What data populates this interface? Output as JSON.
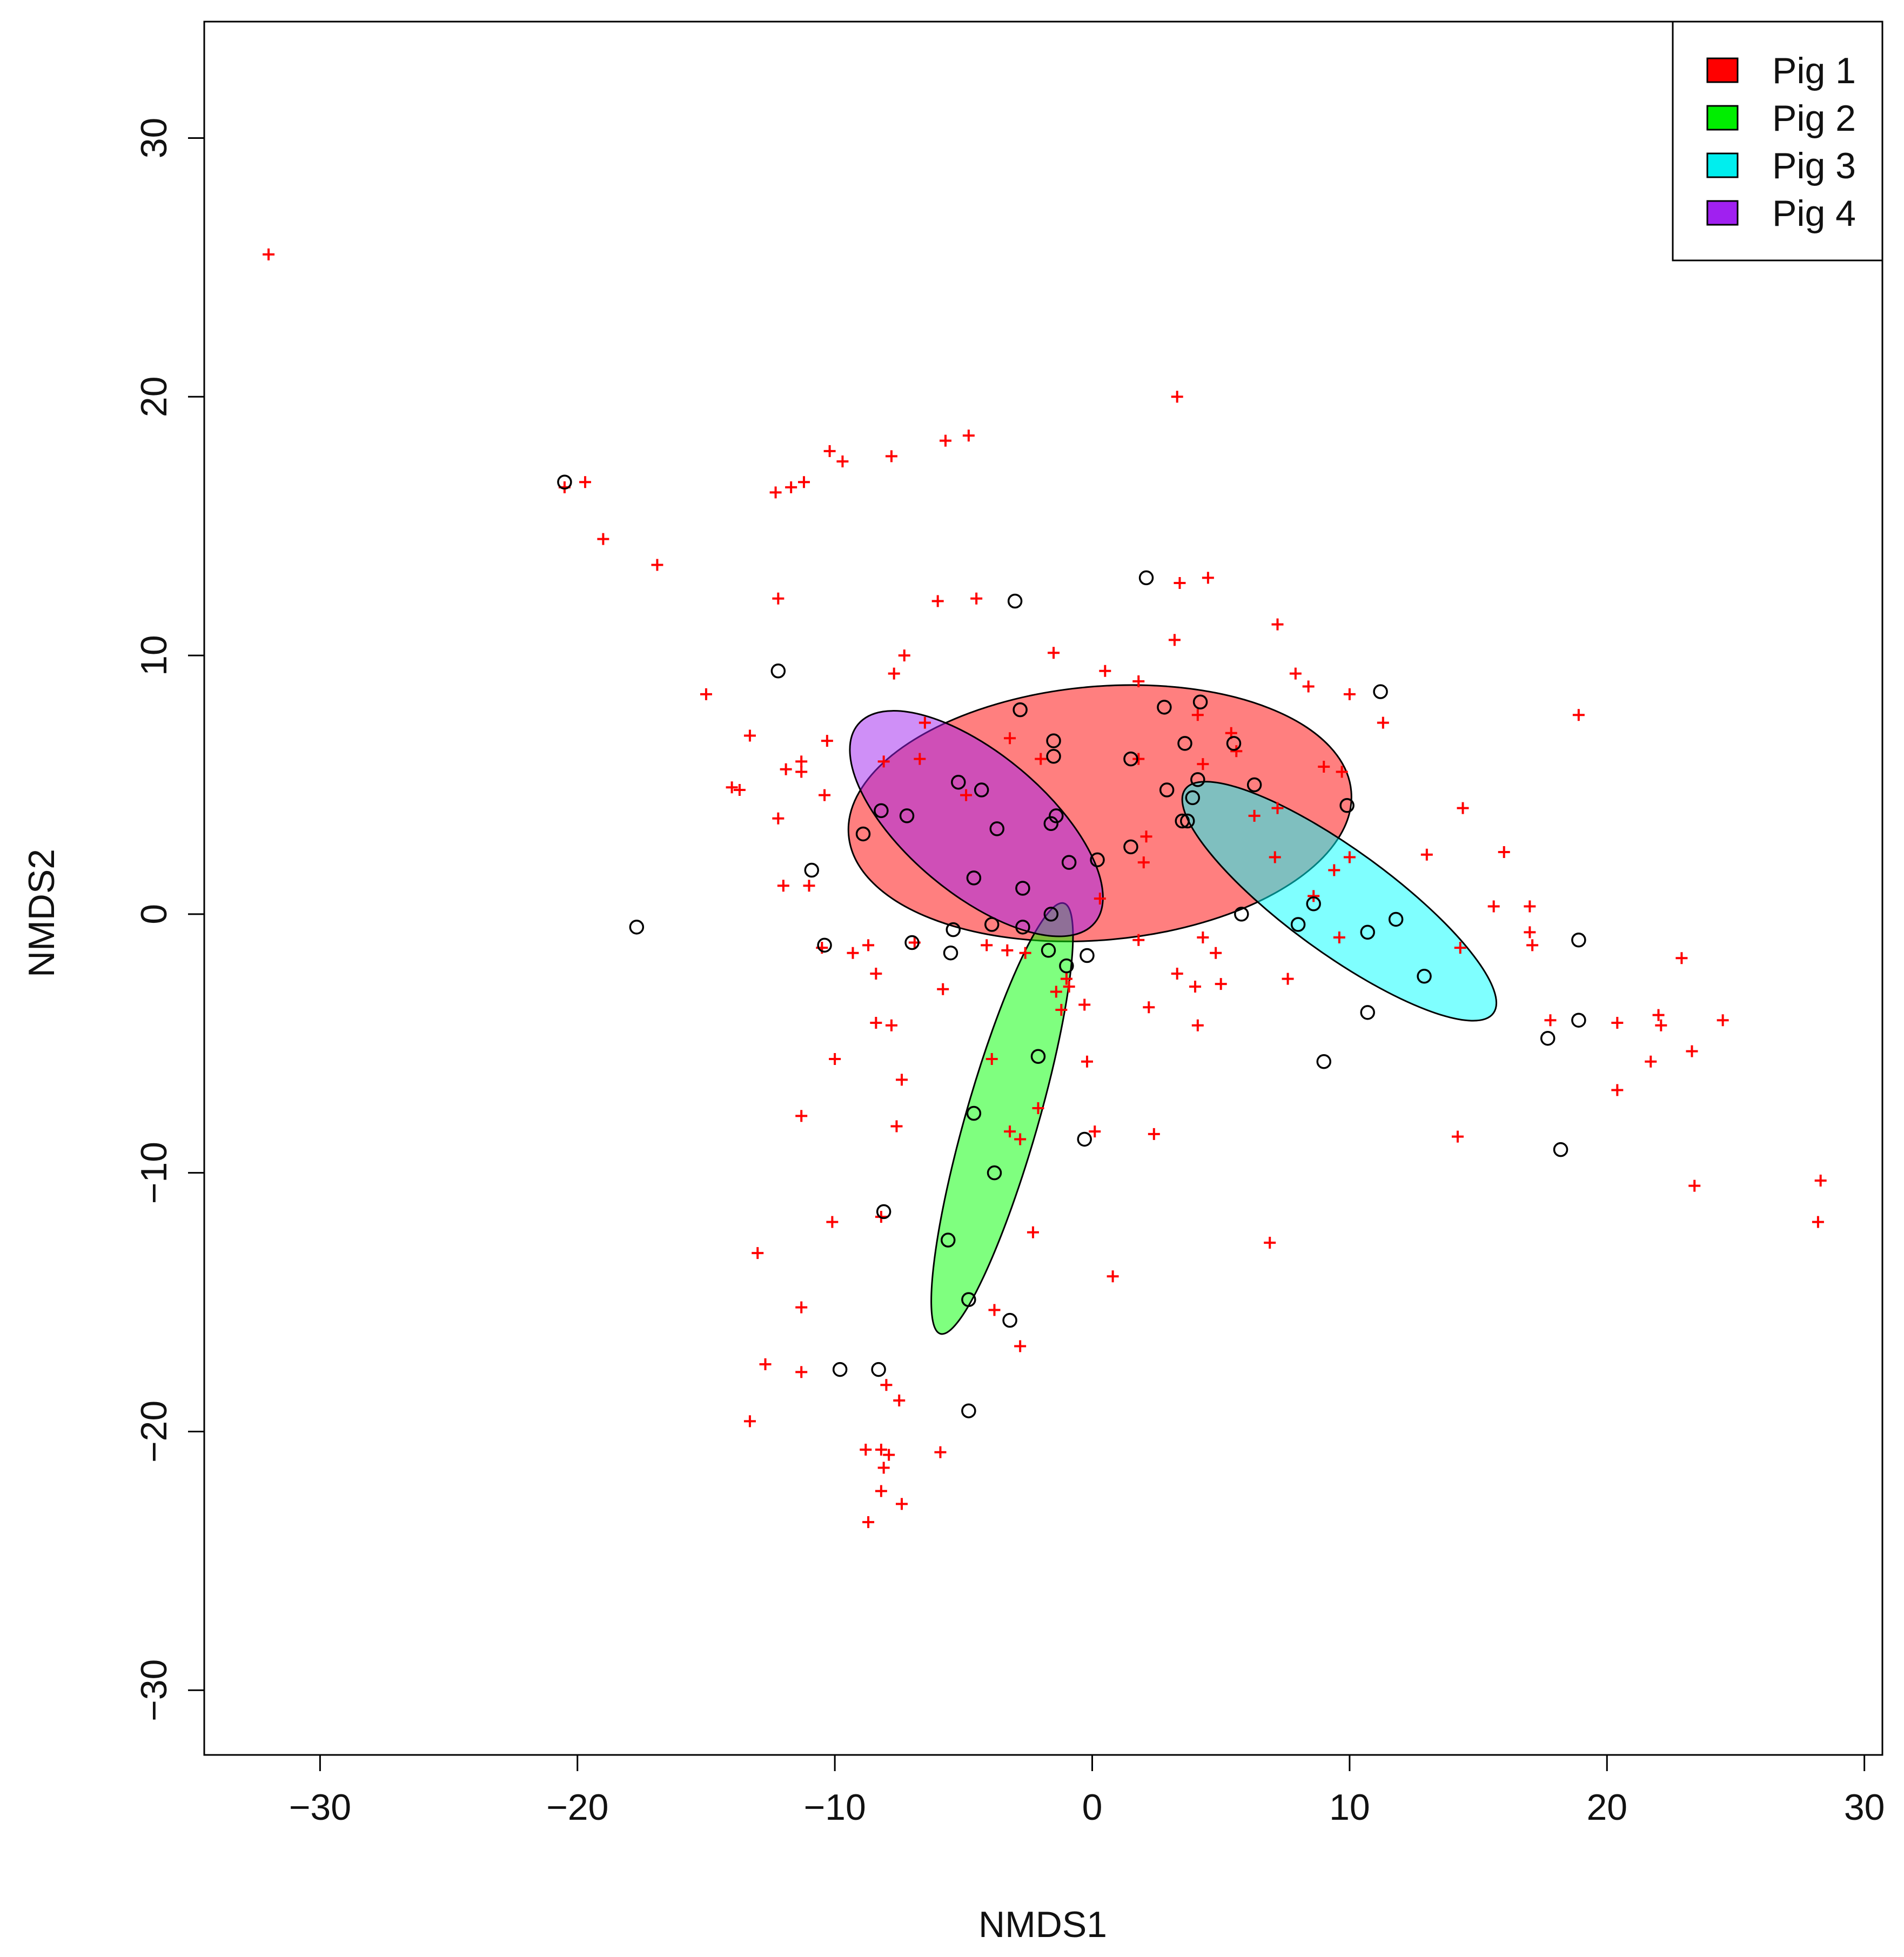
{
  "chart_data": {
    "type": "scatter",
    "title": "",
    "xlabel": "NMDS1",
    "ylabel": "NMDS2",
    "xlim": [
      -34.5,
      30.7
    ],
    "ylim": [
      -32.5,
      34.5
    ],
    "xticks": [
      -30,
      -20,
      -10,
      0,
      10,
      20,
      30
    ],
    "yticks": [
      -30,
      -20,
      -10,
      0,
      10,
      20,
      30
    ],
    "xtick_labels": [
      "−30",
      "−20",
      "−10",
      "0",
      "10",
      "20",
      "30"
    ],
    "ytick_labels": [
      "−30",
      "−20",
      "−10",
      "0",
      "10",
      "20",
      "30"
    ],
    "grid": false,
    "legend_position": "top-right",
    "legend": [
      {
        "label": "Pig 1",
        "color": "#ff0000"
      },
      {
        "label": "Pig 2",
        "color": "#00ee00"
      },
      {
        "label": "Pig 3",
        "color": "#00eeee"
      },
      {
        "label": "Pig 4",
        "color": "#a020f0"
      }
    ],
    "ellipses": [
      {
        "name": "Pig 1",
        "cx": 0.3,
        "cy": 3.9,
        "rx": 9.8,
        "ry": 4.9,
        "angle": 5,
        "fill": "#ff0000"
      },
      {
        "name": "Pig 2",
        "cx": -3.5,
        "cy": -7.9,
        "rx": 8.7,
        "ry": 1.4,
        "angle": 74,
        "fill": "#00ff00"
      },
      {
        "name": "Pig 3",
        "cx": 9.6,
        "cy": 0.5,
        "rx": 7.4,
        "ry": 2.0,
        "angle": -36,
        "fill": "#00ffff"
      },
      {
        "name": "Pig 4",
        "cx": -4.5,
        "cy": 3.5,
        "rx": 6.0,
        "ry": 2.7,
        "angle": -40,
        "fill": "#a020f0"
      }
    ],
    "point_styles": {
      "species": {
        "symbol": "+",
        "color": "#ff0000"
      },
      "sites": {
        "symbol": "o",
        "color": "#000000"
      }
    },
    "species_points": [
      [
        -32.0,
        25.5
      ],
      [
        -20.5,
        16.5
      ],
      [
        -19.7,
        16.7
      ],
      [
        -19.0,
        14.5
      ],
      [
        -16.9,
        13.5
      ],
      [
        -12.3,
        16.3
      ],
      [
        -11.7,
        16.5
      ],
      [
        -11.2,
        16.7
      ],
      [
        -10.2,
        17.9
      ],
      [
        -9.7,
        17.5
      ],
      [
        -7.8,
        17.7
      ],
      [
        -5.7,
        18.3
      ],
      [
        -4.8,
        18.5
      ],
      [
        3.3,
        20.0
      ],
      [
        -15.0,
        8.5
      ],
      [
        -13.3,
        6.9
      ],
      [
        -14.0,
        4.9
      ],
      [
        -13.7,
        4.8
      ],
      [
        -12.2,
        3.7
      ],
      [
        -12.2,
        12.2
      ],
      [
        -6.0,
        12.1
      ],
      [
        -4.5,
        12.2
      ],
      [
        -11.9,
        5.6
      ],
      [
        -11.3,
        5.9
      ],
      [
        -11.3,
        5.5
      ],
      [
        -10.3,
        6.7
      ],
      [
        -10.4,
        4.6
      ],
      [
        -11.0,
        1.1
      ],
      [
        -8.1,
        5.9
      ],
      [
        -7.7,
        9.3
      ],
      [
        -7.3,
        10.0
      ],
      [
        -6.5,
        7.4
      ],
      [
        -6.7,
        6.0
      ],
      [
        -4.9,
        4.6
      ],
      [
        -3.2,
        6.8
      ],
      [
        -1.5,
        10.1
      ],
      [
        0.5,
        9.4
      ],
      [
        1.8,
        9.0
      ],
      [
        3.2,
        10.6
      ],
      [
        3.4,
        12.8
      ],
      [
        4.5,
        13.0
      ],
      [
        7.2,
        11.2
      ],
      [
        7.9,
        9.3
      ],
      [
        8.4,
        8.8
      ],
      [
        10.0,
        8.5
      ],
      [
        11.3,
        7.4
      ],
      [
        18.9,
        7.7
      ],
      [
        9.0,
        5.7
      ],
      [
        9.7,
        5.5
      ],
      [
        14.4,
        4.1
      ],
      [
        16.0,
        2.4
      ],
      [
        13.0,
        2.3
      ],
      [
        15.6,
        0.3
      ],
      [
        17.0,
        0.3
      ],
      [
        17.0,
        -0.7
      ],
      [
        17.1,
        -1.2
      ],
      [
        14.3,
        -1.3
      ],
      [
        17.8,
        -4.1
      ],
      [
        20.4,
        -4.2
      ],
      [
        22.0,
        -3.9
      ],
      [
        22.1,
        -4.3
      ],
      [
        22.9,
        -1.7
      ],
      [
        24.5,
        -4.1
      ],
      [
        21.7,
        -5.7
      ],
      [
        23.3,
        -5.3
      ],
      [
        20.4,
        -6.8
      ],
      [
        14.2,
        -8.6
      ],
      [
        23.4,
        -10.5
      ],
      [
        28.3,
        -10.3
      ],
      [
        28.2,
        -11.9
      ],
      [
        6.9,
        -12.7
      ],
      [
        -10.5,
        -1.3
      ],
      [
        -9.3,
        -1.5
      ],
      [
        -8.7,
        -1.2
      ],
      [
        -8.4,
        -2.3
      ],
      [
        -6.9,
        -1.1
      ],
      [
        -5.8,
        -2.9
      ],
      [
        -4.1,
        -1.2
      ],
      [
        -3.3,
        -1.4
      ],
      [
        -2.6,
        -1.5
      ],
      [
        -1.0,
        -2.5
      ],
      [
        -0.9,
        -2.8
      ],
      [
        -1.4,
        -3.0
      ],
      [
        -1.2,
        -3.7
      ],
      [
        -0.3,
        -3.5
      ],
      [
        -8.4,
        -4.2
      ],
      [
        -7.8,
        -4.3
      ],
      [
        -10.0,
        -5.6
      ],
      [
        -7.4,
        -6.4
      ],
      [
        -11.3,
        -7.8
      ],
      [
        -7.6,
        -8.2
      ],
      [
        -3.9,
        -5.6
      ],
      [
        -0.2,
        -5.7
      ],
      [
        -2.1,
        -7.5
      ],
      [
        -3.2,
        -8.4
      ],
      [
        -2.8,
        -8.7
      ],
      [
        0.1,
        -8.4
      ],
      [
        2.4,
        -8.5
      ],
      [
        -10.1,
        -11.9
      ],
      [
        -8.2,
        -11.7
      ],
      [
        -2.3,
        -12.3
      ],
      [
        0.8,
        -14.0
      ],
      [
        -13.0,
        -13.1
      ],
      [
        -11.3,
        -15.2
      ],
      [
        -12.7,
        -17.4
      ],
      [
        -11.3,
        -17.7
      ],
      [
        -3.8,
        -15.3
      ],
      [
        -2.8,
        -16.7
      ],
      [
        -8.0,
        -18.2
      ],
      [
        -7.5,
        -18.8
      ],
      [
        -13.3,
        -19.6
      ],
      [
        -8.8,
        -20.7
      ],
      [
        -8.2,
        -20.7
      ],
      [
        -7.9,
        -20.9
      ],
      [
        -8.1,
        -21.4
      ],
      [
        -5.9,
        -20.8
      ],
      [
        -8.2,
        -22.3
      ],
      [
        -7.4,
        -22.8
      ],
      [
        -8.7,
        -23.5
      ],
      [
        1.8,
        -1.0
      ],
      [
        3.3,
        -2.3
      ],
      [
        4.0,
        -2.8
      ],
      [
        4.3,
        -0.9
      ],
      [
        4.8,
        -1.5
      ],
      [
        5.0,
        -2.7
      ],
      [
        2.2,
        -3.6
      ],
      [
        4.1,
        -4.3
      ],
      [
        7.6,
        -2.5
      ],
      [
        0.3,
        0.6
      ],
      [
        2.0,
        2.0
      ],
      [
        2.1,
        3.0
      ],
      [
        6.3,
        3.8
      ],
      [
        7.2,
        4.1
      ],
      [
        7.1,
        2.2
      ],
      [
        8.6,
        0.7
      ],
      [
        10.0,
        2.2
      ],
      [
        9.4,
        1.7
      ],
      [
        9.6,
        -0.9
      ],
      [
        5.4,
        7.0
      ],
      [
        5.6,
        6.3
      ],
      [
        4.3,
        5.8
      ],
      [
        4.1,
        7.7
      ],
      [
        1.8,
        6.0
      ],
      [
        -2.0,
        6.0
      ],
      [
        -12.0,
        1.1
      ]
    ],
    "site_points": [
      [
        -20.5,
        16.7
      ],
      [
        -17.7,
        -0.5
      ],
      [
        -12.2,
        9.4
      ],
      [
        -10.9,
        1.7
      ],
      [
        -10.4,
        -1.2
      ],
      [
        -3.0,
        12.1
      ],
      [
        2.1,
        13.0
      ],
      [
        11.2,
        8.6
      ],
      [
        9.9,
        4.2
      ],
      [
        5.8,
        0.0
      ],
      [
        -8.1,
        -11.5
      ],
      [
        -3.2,
        -15.7
      ],
      [
        -9.8,
        -17.6
      ],
      [
        -8.3,
        -17.6
      ],
      [
        -4.8,
        -19.2
      ],
      [
        -0.3,
        -8.7
      ],
      [
        9.0,
        -5.7
      ],
      [
        10.7,
        -3.8
      ],
      [
        17.7,
        -4.8
      ],
      [
        18.9,
        -4.1
      ],
      [
        18.9,
        -1.0
      ],
      [
        18.2,
        -9.1
      ],
      [
        -2.8,
        7.9
      ],
      [
        -1.5,
        6.7
      ],
      [
        -1.5,
        6.1
      ],
      [
        1.5,
        6.0
      ],
      [
        2.8,
        8.0
      ],
      [
        4.2,
        8.2
      ],
      [
        3.6,
        6.6
      ],
      [
        4.1,
        5.2
      ],
      [
        2.9,
        4.8
      ],
      [
        3.9,
        4.5
      ],
      [
        3.7,
        3.6
      ],
      [
        3.5,
        3.6
      ],
      [
        1.5,
        2.6
      ],
      [
        0.2,
        2.1
      ],
      [
        6.3,
        5.0
      ],
      [
        5.5,
        6.6
      ],
      [
        -1.4,
        3.8
      ],
      [
        -1.6,
        3.5
      ],
      [
        -2.7,
        1.0
      ],
      [
        -4.6,
        1.4
      ],
      [
        -5.2,
        5.1
      ],
      [
        -4.3,
        4.8
      ],
      [
        -3.7,
        3.3
      ],
      [
        -8.2,
        4.0
      ],
      [
        -7.2,
        3.8
      ],
      [
        -8.9,
        3.1
      ],
      [
        -0.9,
        2.0
      ],
      [
        -1.6,
        0.0
      ],
      [
        -3.9,
        -0.4
      ],
      [
        -2.7,
        -0.5
      ],
      [
        -5.4,
        -0.6
      ],
      [
        -7.0,
        -1.1
      ],
      [
        -5.5,
        -1.5
      ],
      [
        -1.7,
        -1.4
      ],
      [
        -1.0,
        -2.0
      ],
      [
        -0.2,
        -1.6
      ],
      [
        -2.1,
        -5.5
      ],
      [
        -4.6,
        -7.7
      ],
      [
        -3.8,
        -10.0
      ],
      [
        -5.6,
        -12.6
      ],
      [
        -4.8,
        -14.9
      ],
      [
        8.6,
        0.4
      ],
      [
        8.0,
        -0.4
      ],
      [
        10.7,
        -0.7
      ],
      [
        11.8,
        -0.2
      ],
      [
        12.9,
        -2.4
      ]
    ]
  }
}
